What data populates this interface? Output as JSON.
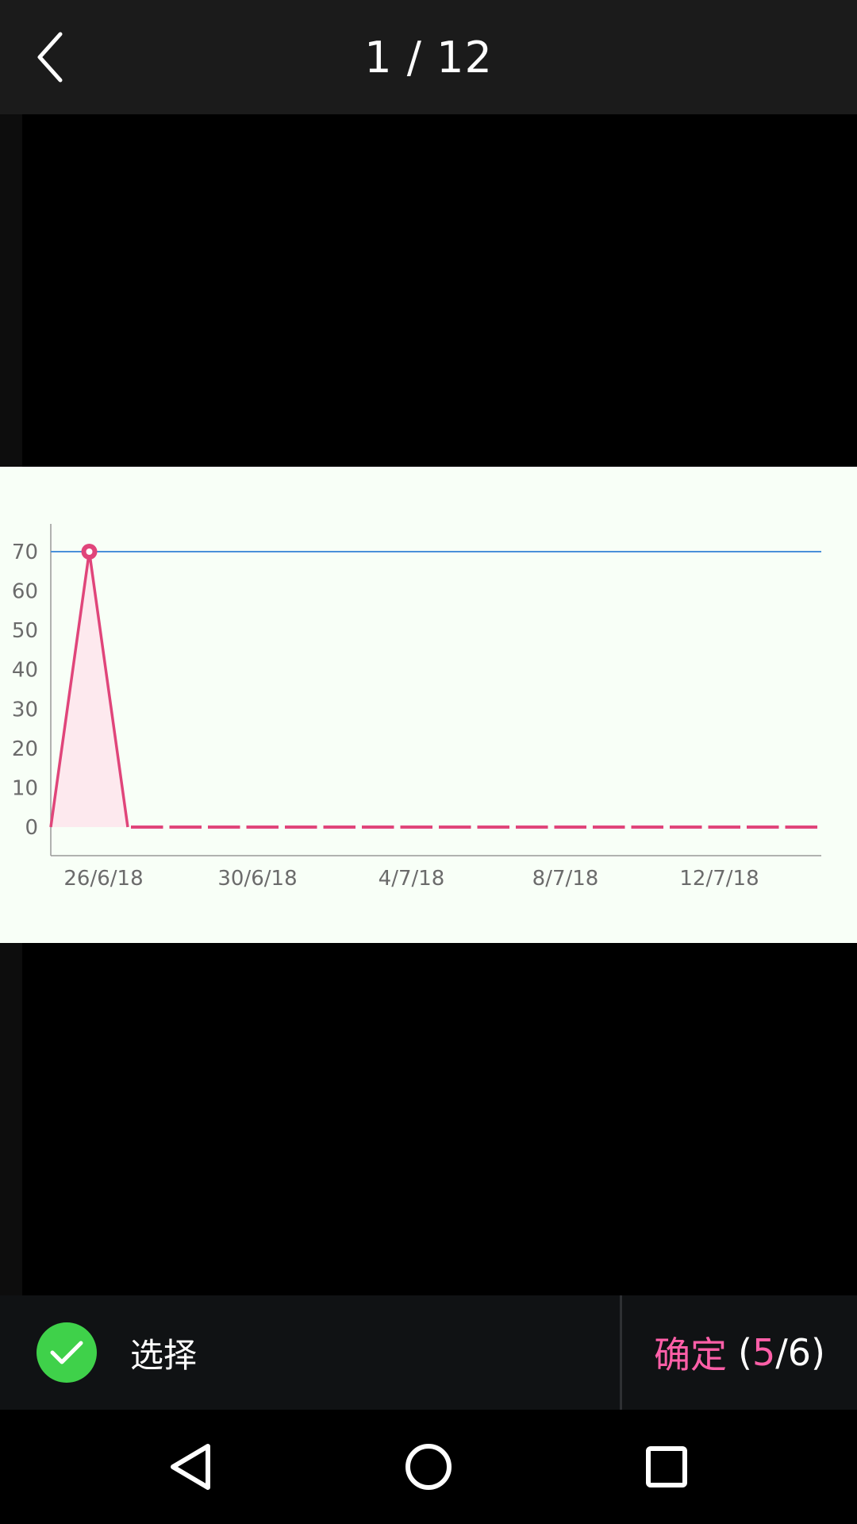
{
  "header": {
    "page_counter": "1 / 12"
  },
  "chart_data": {
    "type": "line",
    "x": [
      "25/6/18",
      "26/6/18",
      "27/6/18",
      "28/6/18",
      "29/6/18",
      "30/6/18",
      "1/7/18",
      "2/7/18",
      "3/7/18",
      "4/7/18",
      "5/7/18",
      "6/7/18",
      "7/7/18",
      "8/7/18",
      "9/7/18",
      "10/7/18",
      "11/7/18",
      "12/7/18",
      "13/7/18",
      "14/7/18",
      "15/7/18"
    ],
    "series": [
      {
        "values": [
          0,
          70,
          0,
          0,
          0,
          0,
          0,
          0,
          0,
          0,
          0,
          0,
          0,
          0,
          0,
          0,
          0,
          0,
          0,
          0,
          0
        ]
      }
    ],
    "reference_line": 70,
    "x_tick_labels": [
      "26/6/18",
      "30/6/18",
      "4/7/18",
      "8/7/18",
      "12/7/18"
    ],
    "y_tick_labels": [
      "0",
      "10",
      "20",
      "30",
      "40",
      "50",
      "60",
      "70"
    ],
    "ylim": [
      -3,
      77
    ],
    "colors": {
      "line": "#e0457a",
      "fill": "#fde9ee",
      "reference": "#4a90d9"
    }
  },
  "bottom_bar": {
    "select_label": "选择",
    "confirm_label": "确定",
    "confirm_open": "(",
    "confirm_selected": "5",
    "confirm_total": "/6)"
  },
  "colors": {
    "accent": "#ff5fa8",
    "check": "#3fd14a"
  }
}
